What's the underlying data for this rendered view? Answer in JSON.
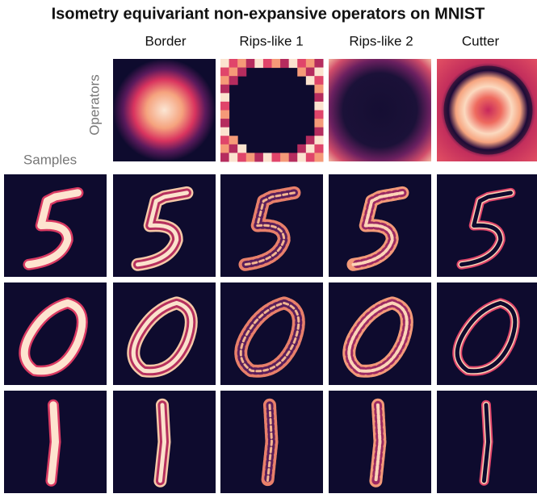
{
  "header": {
    "title": "Isometry equivariant non-expansive operators on MNIST"
  },
  "columns": [
    "Border",
    "Rips-like 1",
    "Rips-like 2",
    "Cutter"
  ],
  "operators_label": "Operators",
  "samples_label": "Samples"
}
